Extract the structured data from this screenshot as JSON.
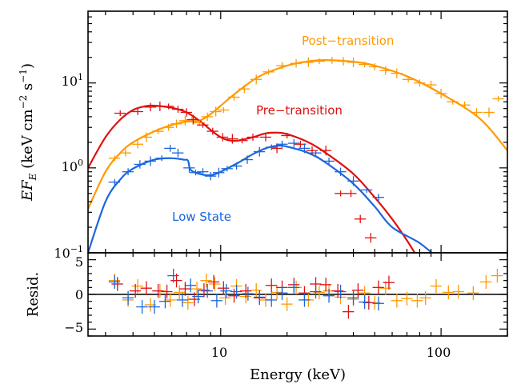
{
  "chart_data": [
    {
      "panel": "spectrum",
      "type": "line",
      "xlabel": "Energy (keV)",
      "ylabel": "EF_E (keV cm^-2 s^-1)",
      "xscale": "log",
      "yscale": "log",
      "xlim": [
        2.5,
        200
      ],
      "ylim": [
        0.1,
        70
      ],
      "x_tick_labels": [
        "10",
        "100"
      ],
      "y_tick_labels": [
        "10^-1",
        "10^0",
        "10^1"
      ],
      "series": [
        {
          "name": "Post−transition",
          "color": "#ff9900",
          "model": [
            [
              2.5,
              0.33
            ],
            [
              3,
              0.9
            ],
            [
              3.5,
              1.5
            ],
            [
              4,
              2.0
            ],
            [
              5,
              2.7
            ],
            [
              6,
              3.2
            ],
            [
              7,
              3.5
            ],
            [
              8,
              3.6
            ],
            [
              9,
              4.3
            ],
            [
              10,
              5.4
            ],
            [
              12,
              8.0
            ],
            [
              15,
              12.0
            ],
            [
              20,
              16.0
            ],
            [
              25,
              18.0
            ],
            [
              30,
              18.6
            ],
            [
              40,
              17.8
            ],
            [
              50,
              16.0
            ],
            [
              70,
              12.0
            ],
            [
              100,
              7.5
            ],
            [
              150,
              3.8
            ],
            [
              200,
              1.6
            ]
          ],
          "points": [
            [
              3.3,
              1.3
            ],
            [
              3.7,
              1.5
            ],
            [
              4.2,
              1.9
            ],
            [
              4.6,
              2.3
            ],
            [
              5.2,
              2.7
            ],
            [
              5.8,
              3.0
            ],
            [
              6.3,
              3.3
            ],
            [
              6.9,
              3.6
            ],
            [
              7.4,
              3.7
            ],
            [
              8.0,
              3.4
            ],
            [
              8.7,
              4.0
            ],
            [
              9.5,
              4.6
            ],
            [
              10.3,
              4.8
            ],
            [
              11.5,
              6.8
            ],
            [
              12.8,
              8.5
            ],
            [
              14.5,
              11.0
            ],
            [
              16.5,
              13.5
            ],
            [
              19,
              16.0
            ],
            [
              22,
              17.0
            ],
            [
              25,
              17.5
            ],
            [
              28,
              18.0
            ],
            [
              32,
              18.5
            ],
            [
              36,
              18.0
            ],
            [
              40,
              17.5
            ],
            [
              45,
              16.5
            ],
            [
              50,
              15.5
            ],
            [
              56,
              14.0
            ],
            [
              63,
              13.0
            ],
            [
              71,
              11.0
            ],
            [
              80,
              10.0
            ],
            [
              90,
              9.5
            ],
            [
              100,
              7.5
            ],
            [
              113,
              6.0
            ],
            [
              128,
              5.5
            ],
            [
              145,
              4.5
            ],
            [
              165,
              4.5
            ],
            [
              182,
              6.5
            ]
          ]
        },
        {
          "name": "Pre−transition",
          "color": "#e01010",
          "model": [
            [
              2.5,
              1.0
            ],
            [
              3,
              2.3
            ],
            [
              3.5,
              3.7
            ],
            [
              4,
              4.8
            ],
            [
              4.5,
              5.3
            ],
            [
              5,
              5.4
            ],
            [
              6,
              5.1
            ],
            [
              7,
              4.5
            ],
            [
              8,
              3.6
            ],
            [
              9,
              2.8
            ],
            [
              10,
              2.3
            ],
            [
              11,
              2.1
            ],
            [
              12,
              2.1
            ],
            [
              14,
              2.3
            ],
            [
              16,
              2.55
            ],
            [
              18,
              2.6
            ],
            [
              20,
              2.5
            ],
            [
              25,
              2.0
            ],
            [
              30,
              1.5
            ],
            [
              40,
              0.85
            ],
            [
              50,
              0.45
            ],
            [
              60,
              0.25
            ],
            [
              70,
              0.14
            ],
            [
              80,
              0.08
            ]
          ],
          "points": [
            [
              3.5,
              4.4
            ],
            [
              4.2,
              4.6
            ],
            [
              4.8,
              5.2
            ],
            [
              5.3,
              5.3
            ],
            [
              5.8,
              5.3
            ],
            [
              6.4,
              4.9
            ],
            [
              7.0,
              4.5
            ],
            [
              7.5,
              3.7
            ],
            [
              8.3,
              3.2
            ],
            [
              9.2,
              2.7
            ],
            [
              10.2,
              2.3
            ],
            [
              11.3,
              2.2
            ],
            [
              12.5,
              2.1
            ],
            [
              14,
              2.3
            ],
            [
              16,
              2.3
            ],
            [
              18,
              1.7
            ],
            [
              20,
              2.4
            ],
            [
              23,
              1.9
            ],
            [
              26,
              1.6
            ],
            [
              30,
              1.6
            ],
            [
              35,
              0.5
            ],
            [
              39,
              0.5
            ],
            [
              43,
              0.25
            ],
            [
              48,
              0.15
            ]
          ]
        },
        {
          "name": "Low State",
          "color": "#1a66dd",
          "model": [
            [
              2.5,
              0.1
            ],
            [
              3,
              0.4
            ],
            [
              3.5,
              0.73
            ],
            [
              4,
              0.98
            ],
            [
              5,
              1.25
            ],
            [
              6,
              1.3
            ],
            [
              6.8,
              1.25
            ],
            [
              7.1,
              1.22
            ],
            [
              7.3,
              0.95
            ],
            [
              8,
              0.85
            ],
            [
              9,
              0.82
            ],
            [
              10,
              0.9
            ],
            [
              12,
              1.15
            ],
            [
              14,
              1.45
            ],
            [
              16,
              1.7
            ],
            [
              18,
              1.82
            ],
            [
              20,
              1.78
            ],
            [
              25,
              1.5
            ],
            [
              30,
              1.15
            ],
            [
              40,
              0.65
            ],
            [
              50,
              0.35
            ],
            [
              60,
              0.2
            ],
            [
              80,
              0.13
            ],
            [
              100,
              0.08
            ]
          ],
          "points": [
            [
              3.3,
              0.68
            ],
            [
              3.8,
              0.9
            ],
            [
              4.3,
              1.1
            ],
            [
              4.8,
              1.2
            ],
            [
              5.4,
              1.3
            ],
            [
              5.9,
              1.7
            ],
            [
              6.4,
              1.5
            ],
            [
              7.2,
              1.0
            ],
            [
              7.7,
              0.88
            ],
            [
              8.3,
              0.9
            ],
            [
              9.0,
              0.8
            ],
            [
              9.8,
              0.88
            ],
            [
              10.7,
              0.98
            ],
            [
              11.8,
              1.05
            ],
            [
              13.2,
              1.25
            ],
            [
              15,
              1.55
            ],
            [
              17,
              1.75
            ],
            [
              19,
              1.9
            ],
            [
              21.5,
              1.95
            ],
            [
              24,
              1.7
            ],
            [
              27,
              1.5
            ],
            [
              31,
              1.2
            ],
            [
              35,
              0.9
            ],
            [
              40,
              0.7
            ],
            [
              46,
              0.55
            ],
            [
              52,
              0.45
            ]
          ]
        }
      ]
    },
    {
      "panel": "residuals",
      "type": "scatter",
      "ylabel": "Resid.",
      "xlabel": "Energy (keV)",
      "xscale": "log",
      "xlim": [
        2.5,
        200
      ],
      "ylim": [
        -6,
        6
      ],
      "y_tick_labels": [
        "−5",
        "0",
        "5"
      ],
      "series": [
        {
          "name": "Post−transition",
          "color": "#ff9900",
          "points": [
            [
              3.3,
              2
            ],
            [
              3.8,
              -0.8
            ],
            [
              4.2,
              1.2
            ],
            [
              4.8,
              -1.5
            ],
            [
              5.3,
              0.5
            ],
            [
              5.9,
              -0.8
            ],
            [
              6.5,
              0.3
            ],
            [
              7.1,
              -1.2
            ],
            [
              7.8,
              0.8
            ],
            [
              8.6,
              2.0
            ],
            [
              9.4,
              1.5
            ],
            [
              10.5,
              -0.5
            ],
            [
              11.8,
              1.2
            ],
            [
              13,
              -0.3
            ],
            [
              14.5,
              0.6
            ],
            [
              16,
              -0.8
            ],
            [
              18,
              0.3
            ],
            [
              20,
              -1.4
            ],
            [
              22,
              1.0
            ],
            [
              25,
              -0.8
            ],
            [
              28,
              0.3
            ],
            [
              31,
              0.5
            ],
            [
              35,
              -0.4
            ],
            [
              40,
              -0.7
            ],
            [
              45,
              0.2
            ],
            [
              50,
              -1.2
            ],
            [
              56,
              0.9
            ],
            [
              63,
              -0.9
            ],
            [
              70,
              -0.6
            ],
            [
              78,
              -0.9
            ],
            [
              85,
              -0.5
            ],
            [
              95,
              1.2
            ],
            [
              108,
              0.3
            ],
            [
              120,
              0.4
            ],
            [
              140,
              0.2
            ],
            [
              160,
              1.8
            ],
            [
              180,
              2.7
            ]
          ]
        },
        {
          "name": "Pre−transition",
          "color": "#e01010",
          "points": [
            [
              3.4,
              1.5
            ],
            [
              4.1,
              0.5
            ],
            [
              4.6,
              0.9
            ],
            [
              5.2,
              0.5
            ],
            [
              5.7,
              0.4
            ],
            [
              6.3,
              2.0
            ],
            [
              6.9,
              0.8
            ],
            [
              7.6,
              -0.7
            ],
            [
              8.4,
              0.6
            ],
            [
              9.3,
              1.8
            ],
            [
              10.3,
              0.9
            ],
            [
              11.5,
              -0.2
            ],
            [
              13,
              0.5
            ],
            [
              15,
              -0.5
            ],
            [
              17,
              1.3
            ],
            [
              19,
              1.0
            ],
            [
              21.5,
              1.4
            ],
            [
              24,
              0.2
            ],
            [
              27,
              1.5
            ],
            [
              30,
              1.4
            ],
            [
              34,
              0.5
            ],
            [
              38,
              -2.5
            ],
            [
              42,
              0.6
            ],
            [
              47,
              -1.2
            ],
            [
              52,
              1.0
            ],
            [
              58,
              1.7
            ]
          ]
        },
        {
          "name": "Low State",
          "color": "#1a66dd",
          "points": [
            [
              3.3,
              1.8
            ],
            [
              3.8,
              -0.5
            ],
            [
              4.4,
              -1.8
            ],
            [
              5.0,
              -1.8
            ],
            [
              5.6,
              -1.0
            ],
            [
              6.1,
              2.7
            ],
            [
              6.7,
              -0.8
            ],
            [
              7.3,
              1.3
            ],
            [
              7.9,
              -0.3
            ],
            [
              8.7,
              0.5
            ],
            [
              9.6,
              -0.9
            ],
            [
              10.6,
              0.5
            ],
            [
              11.8,
              0.4
            ],
            [
              13.3,
              0.1
            ],
            [
              15,
              -0.4
            ],
            [
              17,
              -0.8
            ],
            [
              19,
              0.2
            ],
            [
              21.5,
              1.0
            ],
            [
              24,
              -0.8
            ],
            [
              27,
              0.4
            ],
            [
              31,
              -0.2
            ],
            [
              35,
              0.4
            ],
            [
              40,
              -0.5
            ],
            [
              45,
              -1.1
            ],
            [
              52,
              -1.3
            ]
          ]
        }
      ]
    }
  ]
}
